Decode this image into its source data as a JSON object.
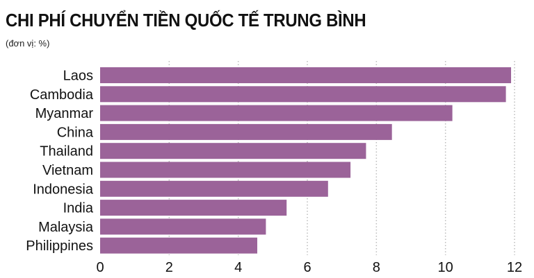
{
  "chart_data": {
    "type": "bar",
    "orientation": "horizontal",
    "title": "CHI PHÍ CHUYỂN TIỀN QUỐC TẾ TRUNG BÌNH",
    "subtitle": "(đơn vị: %)",
    "xlabel": "",
    "ylabel": "",
    "categories": [
      "Laos",
      "Cambodia",
      "Myanmar",
      "China",
      "Thailand",
      "Vietnam",
      "Indonesia",
      "India",
      "Malaysia",
      "Philippines"
    ],
    "values": [
      11.9,
      11.75,
      10.2,
      8.45,
      7.7,
      7.25,
      6.6,
      5.4,
      4.8,
      4.55
    ],
    "xlim": [
      0,
      12
    ],
    "xticks": [
      "0",
      "2",
      "4",
      "6",
      "8",
      "10",
      "12"
    ],
    "grid": "vertical-dotted",
    "bar_color": "#9b6399",
    "grid_color": "#bbbbbb"
  }
}
